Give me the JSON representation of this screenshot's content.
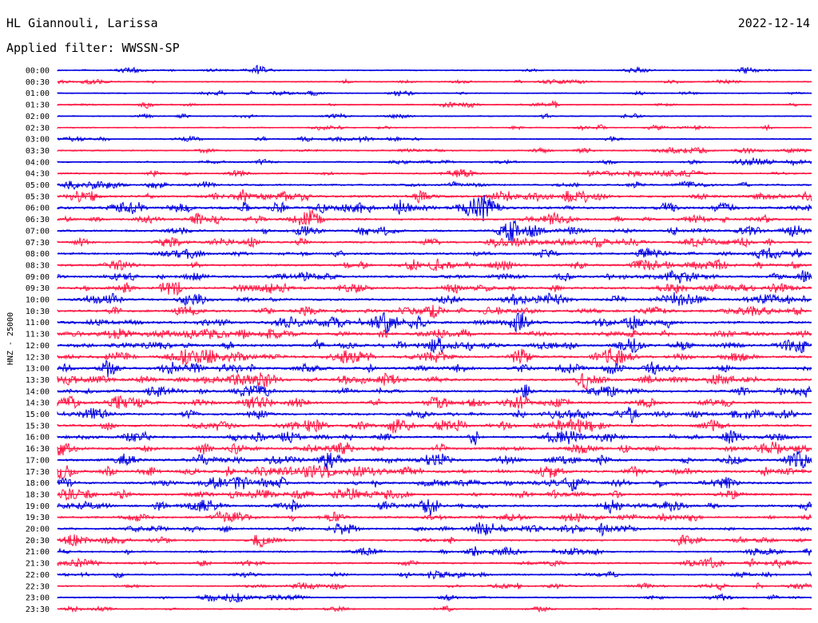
{
  "header": {
    "station": "HL Giannouli, Larissa",
    "date": "2022-12-14",
    "filter": "Applied filter: WWSSN-SP"
  },
  "chart_data": {
    "type": "line",
    "title": "HL Giannouli, Larissa",
    "date": "2022-12-14",
    "filter": "WWSSN-SP",
    "ylabel": "HNZ - 25000",
    "colors": {
      "blue": "#0000e0",
      "red": "#ff1744"
    },
    "rows": [
      {
        "time": "00:00",
        "color": "blue",
        "activity": 0.15
      },
      {
        "time": "00:30",
        "color": "red",
        "activity": 0.15
      },
      {
        "time": "01:00",
        "color": "blue",
        "activity": 0.12
      },
      {
        "time": "01:30",
        "color": "red",
        "activity": 0.18
      },
      {
        "time": "02:00",
        "color": "blue",
        "activity": 0.12
      },
      {
        "time": "02:30",
        "color": "red",
        "activity": 0.15
      },
      {
        "time": "03:00",
        "color": "blue",
        "activity": 0.15
      },
      {
        "time": "03:30",
        "color": "red",
        "activity": 0.2
      },
      {
        "time": "04:00",
        "color": "blue",
        "activity": 0.25
      },
      {
        "time": "04:30",
        "color": "red",
        "activity": 0.3
      },
      {
        "time": "05:00",
        "color": "blue",
        "activity": 0.4
      },
      {
        "time": "05:30",
        "color": "red",
        "activity": 0.6
      },
      {
        "time": "06:00",
        "color": "blue",
        "activity": 0.7
      },
      {
        "time": "06:30",
        "color": "red",
        "activity": 0.5
      },
      {
        "time": "07:00",
        "color": "blue",
        "activity": 0.5
      },
      {
        "time": "07:30",
        "color": "red",
        "activity": 0.5
      },
      {
        "time": "08:00",
        "color": "blue",
        "activity": 0.5
      },
      {
        "time": "08:30",
        "color": "red",
        "activity": 0.55
      },
      {
        "time": "09:00",
        "color": "blue",
        "activity": 0.55
      },
      {
        "time": "09:30",
        "color": "red",
        "activity": 0.6
      },
      {
        "time": "10:00",
        "color": "blue",
        "activity": 0.6
      },
      {
        "time": "10:30",
        "color": "red",
        "activity": 0.6
      },
      {
        "time": "11:00",
        "color": "blue",
        "activity": 0.75
      },
      {
        "time": "11:30",
        "color": "red",
        "activity": 0.7
      },
      {
        "time": "12:00",
        "color": "blue",
        "activity": 0.65
      },
      {
        "time": "12:30",
        "color": "red",
        "activity": 0.65
      },
      {
        "time": "13:00",
        "color": "blue",
        "activity": 0.65
      },
      {
        "time": "13:30",
        "color": "red",
        "activity": 0.65
      },
      {
        "time": "14:00",
        "color": "blue",
        "activity": 0.6
      },
      {
        "time": "14:30",
        "color": "red",
        "activity": 0.6
      },
      {
        "time": "15:00",
        "color": "blue",
        "activity": 0.6
      },
      {
        "time": "15:30",
        "color": "red",
        "activity": 0.6
      },
      {
        "time": "16:00",
        "color": "blue",
        "activity": 0.6
      },
      {
        "time": "16:30",
        "color": "red",
        "activity": 0.6
      },
      {
        "time": "17:00",
        "color": "blue",
        "activity": 0.65
      },
      {
        "time": "17:30",
        "color": "red",
        "activity": 0.65
      },
      {
        "time": "18:00",
        "color": "blue",
        "activity": 0.6
      },
      {
        "time": "18:30",
        "color": "red",
        "activity": 0.6
      },
      {
        "time": "19:00",
        "color": "blue",
        "activity": 0.55
      },
      {
        "time": "19:30",
        "color": "red",
        "activity": 0.5
      },
      {
        "time": "20:00",
        "color": "blue",
        "activity": 0.5
      },
      {
        "time": "20:30",
        "color": "red",
        "activity": 0.35
      },
      {
        "time": "21:00",
        "color": "blue",
        "activity": 0.3
      },
      {
        "time": "21:30",
        "color": "red",
        "activity": 0.4
      },
      {
        "time": "22:00",
        "color": "blue",
        "activity": 0.3
      },
      {
        "time": "22:30",
        "color": "red",
        "activity": 0.3
      },
      {
        "time": "23:00",
        "color": "blue",
        "activity": 0.25
      },
      {
        "time": "23:30",
        "color": "red",
        "activity": 0.15
      }
    ]
  }
}
